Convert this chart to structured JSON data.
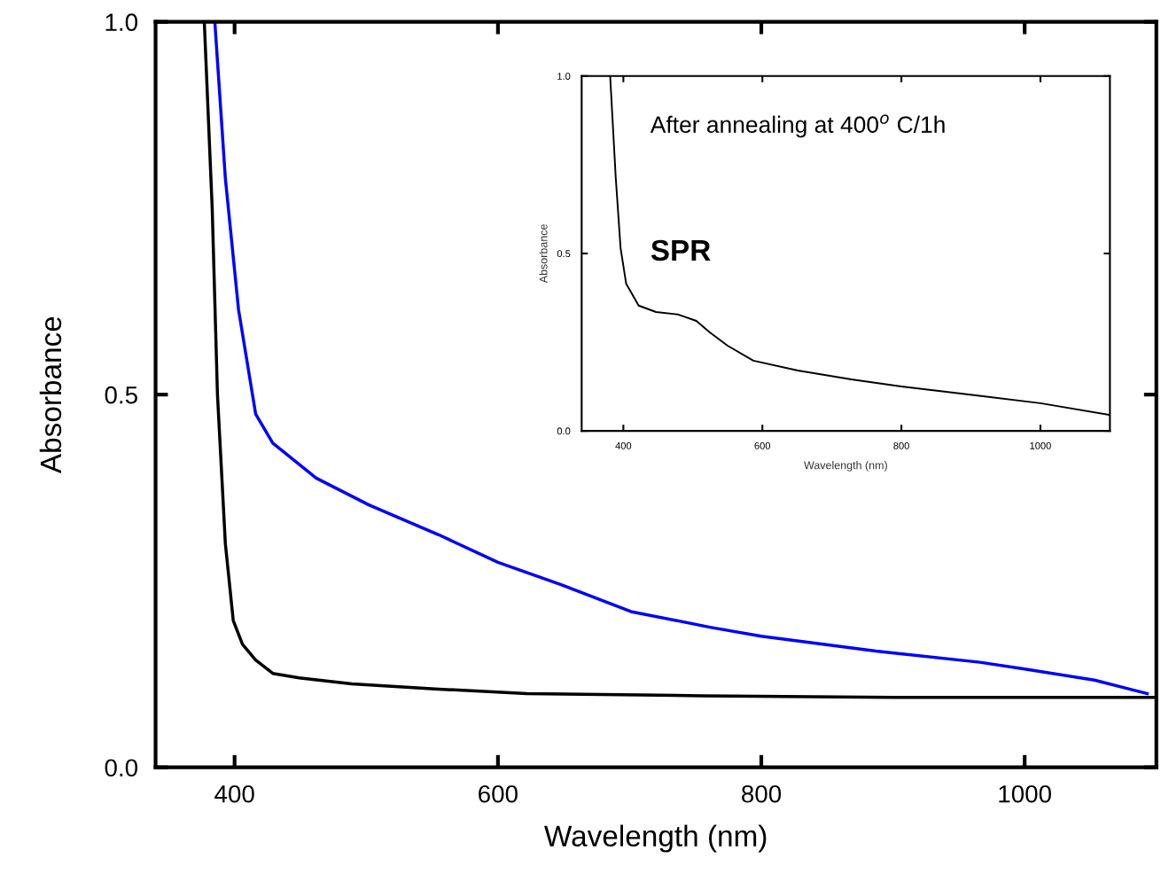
{
  "chart_data": [
    {
      "type": "line",
      "xlabel": "Wavelength (nm)",
      "ylabel": "Absorbance",
      "xlim": [
        340,
        1100
      ],
      "ylim": [
        0,
        1.0
      ],
      "xticks": [
        400,
        600,
        800,
        1000
      ],
      "yticks": [
        {
          "value": 0,
          "label": "0.0"
        },
        {
          "value": 0.5,
          "label": "0.5"
        },
        {
          "value": 1.0,
          "label": "1.0"
        }
      ],
      "grid": false,
      "legend": false,
      "series": [
        {
          "color": "#000000",
          "x": [
            377,
            383,
            387,
            393,
            399,
            406,
            416,
            429,
            449,
            489,
            555,
            622,
            755,
            900,
            1000,
            1100
          ],
          "values": [
            1.0,
            0.75,
            0.5,
            0.3,
            0.197,
            0.165,
            0.144,
            0.126,
            0.12,
            0.112,
            0.105,
            0.099,
            0.096,
            0.094,
            0.094,
            0.094
          ]
        },
        {
          "color": "#0000ff",
          "x": [
            385,
            393,
            403,
            416,
            429,
            462,
            502,
            555,
            600,
            648,
            701,
            761,
            800,
            887,
            966,
            1000,
            1053,
            1093
          ],
          "values": [
            1.0,
            0.79,
            0.614,
            0.474,
            0.435,
            0.388,
            0.352,
            0.312,
            0.275,
            0.245,
            0.209,
            0.188,
            0.176,
            0.156,
            0.141,
            0.132,
            0.117,
            0.099
          ]
        }
      ]
    },
    {
      "type": "line",
      "xlabel": "Wavelength (nm)",
      "ylabel": "Absorbance",
      "xlim": [
        340,
        1100
      ],
      "ylim": [
        0,
        1.0
      ],
      "xticks": [
        400,
        600,
        800,
        1000
      ],
      "yticks": [
        {
          "value": 0,
          "label": "0.0"
        },
        {
          "value": 0.5,
          "label": "0.5"
        },
        {
          "value": 1.0,
          "label": "1.0"
        }
      ],
      "grid": false,
      "legend": false,
      "annotations": [
        "After annealing at 400$^{o}$ C/1h",
        "SPR"
      ],
      "series": [
        {
          "color": "#000000",
          "x": [
            381,
            389,
            396,
            404,
            422,
            447,
            479,
            505,
            524,
            550,
            587,
            651,
            728,
            800,
            907,
            1000,
            1100
          ],
          "values": [
            1.0,
            0.715,
            0.515,
            0.415,
            0.353,
            0.335,
            0.328,
            0.31,
            0.278,
            0.24,
            0.198,
            0.17,
            0.145,
            0.125,
            0.1,
            0.078,
            0.045
          ]
        }
      ]
    }
  ]
}
